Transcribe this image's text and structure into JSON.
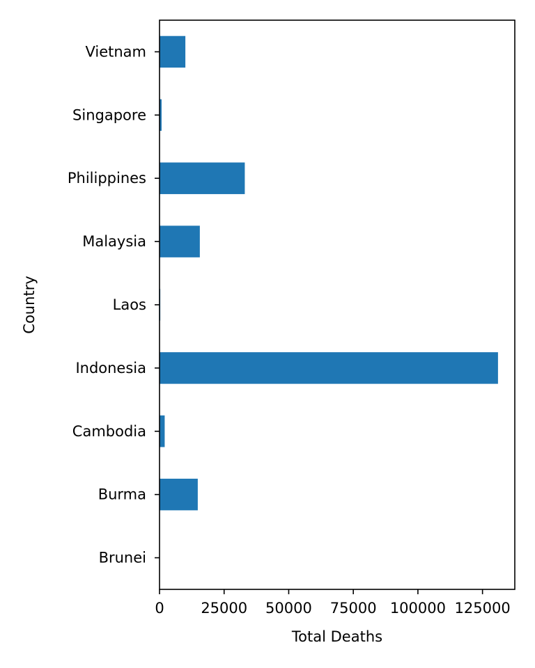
{
  "chart_data": {
    "type": "bar",
    "orientation": "horizontal",
    "title": "",
    "xlabel": "Total Deaths",
    "ylabel": "Country",
    "categories": [
      "Brunei",
      "Burma",
      "Cambodia",
      "Indonesia",
      "Laos",
      "Malaysia",
      "Philippines",
      "Singapore",
      "Vietnam"
    ],
    "values": [
      110,
      14800,
      2000,
      131000,
      300,
      15600,
      33000,
      800,
      10000
    ],
    "xlim": [
      0,
      137500
    ],
    "xticks": [
      0,
      25000,
      50000,
      75000,
      100000,
      125000
    ],
    "xtick_labels": [
      "0",
      "25000",
      "50000",
      "75000",
      "100000",
      "125000"
    ],
    "grid": false,
    "legend": "none",
    "colors": {
      "bar": "#1f77b4",
      "axes": "#000000",
      "background": "#ffffff"
    }
  }
}
